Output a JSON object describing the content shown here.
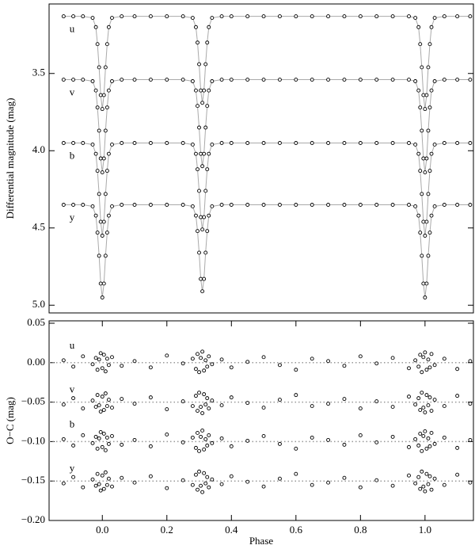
{
  "chart_data": [
    {
      "type": "line",
      "y_label": "Differential magnitude (mag)",
      "x": [
        -0.12,
        -0.09,
        -0.06,
        -0.03,
        -0.02,
        -0.015,
        -0.01,
        -0.005,
        0,
        0.005,
        0.01,
        0.015,
        0.02,
        0.03,
        0.06,
        0.1,
        0.15,
        0.2,
        0.25,
        0.28,
        0.29,
        0.295,
        0.3,
        0.305,
        0.31,
        0.315,
        0.32,
        0.325,
        0.33,
        0.34,
        0.37,
        0.4,
        0.45,
        0.5,
        0.55,
        0.6,
        0.65,
        0.7,
        0.75,
        0.8,
        0.85,
        0.9,
        0.95,
        0.97,
        0.98,
        0.985,
        0.99,
        0.995,
        1.0,
        1.005,
        1.01,
        1.015,
        1.02,
        1.03,
        1.06,
        1.1,
        1.14
      ],
      "xlim": [
        -0.165,
        1.15
      ],
      "ylim": [
        5.05,
        3.05
      ],
      "yticks": [
        3.5,
        {
          "value": 4,
          "label": "4.0"
        },
        4.5,
        {
          "value": 5,
          "label": "5.0"
        }
      ],
      "series": [
        {
          "name": "u",
          "color": "#000000",
          "values": [
            3.13,
            3.13,
            3.13,
            3.14,
            3.2,
            3.31,
            3.46,
            3.64,
            3.73,
            3.64,
            3.46,
            3.31,
            3.2,
            3.14,
            3.13,
            3.13,
            3.13,
            3.13,
            3.13,
            3.14,
            3.2,
            3.3,
            3.44,
            3.61,
            3.69,
            3.61,
            3.44,
            3.3,
            3.2,
            3.14,
            3.13,
            3.13,
            3.13,
            3.13,
            3.13,
            3.13,
            3.13,
            3.13,
            3.13,
            3.13,
            3.13,
            3.13,
            3.13,
            3.14,
            3.2,
            3.31,
            3.46,
            3.64,
            3.73,
            3.64,
            3.46,
            3.31,
            3.2,
            3.14,
            3.13,
            3.13,
            3.13
          ]
        },
        {
          "name": "v",
          "color": "#000000",
          "values": [
            3.54,
            3.54,
            3.54,
            3.55,
            3.61,
            3.72,
            3.87,
            4.05,
            4.14,
            4.05,
            3.87,
            3.72,
            3.61,
            3.55,
            3.54,
            3.54,
            3.54,
            3.54,
            3.54,
            3.55,
            3.61,
            3.71,
            3.85,
            4.02,
            4.1,
            4.02,
            3.85,
            3.71,
            3.61,
            3.55,
            3.54,
            3.54,
            3.54,
            3.54,
            3.54,
            3.54,
            3.54,
            3.54,
            3.54,
            3.54,
            3.54,
            3.54,
            3.54,
            3.55,
            3.61,
            3.72,
            3.87,
            4.05,
            4.14,
            4.05,
            3.87,
            3.72,
            3.61,
            3.55,
            3.54,
            3.54,
            3.54
          ]
        },
        {
          "name": "b",
          "color": "#000000",
          "values": [
            3.95,
            3.95,
            3.95,
            3.96,
            4.02,
            4.13,
            4.28,
            4.46,
            4.55,
            4.46,
            4.28,
            4.13,
            4.02,
            3.96,
            3.95,
            3.95,
            3.95,
            3.95,
            3.95,
            3.96,
            4.02,
            4.12,
            4.26,
            4.43,
            4.51,
            4.43,
            4.26,
            4.12,
            4.02,
            3.96,
            3.95,
            3.95,
            3.95,
            3.95,
            3.95,
            3.95,
            3.95,
            3.95,
            3.95,
            3.95,
            3.95,
            3.95,
            3.95,
            3.96,
            4.02,
            4.13,
            4.28,
            4.46,
            4.55,
            4.46,
            4.28,
            4.13,
            4.02,
            3.96,
            3.95,
            3.95,
            3.95
          ]
        },
        {
          "name": "y",
          "color": "#000000",
          "values": [
            4.35,
            4.35,
            4.35,
            4.36,
            4.42,
            4.53,
            4.68,
            4.86,
            4.95,
            4.86,
            4.68,
            4.53,
            4.42,
            4.36,
            4.35,
            4.35,
            4.35,
            4.35,
            4.35,
            4.36,
            4.42,
            4.52,
            4.66,
            4.83,
            4.91,
            4.83,
            4.66,
            4.52,
            4.42,
            4.36,
            4.35,
            4.35,
            4.35,
            4.35,
            4.35,
            4.35,
            4.35,
            4.35,
            4.35,
            4.35,
            4.35,
            4.35,
            4.35,
            4.36,
            4.42,
            4.53,
            4.68,
            4.86,
            4.95,
            4.86,
            4.68,
            4.53,
            4.42,
            4.36,
            4.35,
            4.35,
            4.35
          ]
        }
      ]
    },
    {
      "type": "scatter",
      "x_label": "Phase",
      "y_label": "O−C (mag)",
      "x": [
        -0.12,
        -0.09,
        -0.06,
        -0.03,
        -0.02,
        -0.015,
        -0.01,
        -0.005,
        0,
        0.005,
        0.01,
        0.015,
        0.02,
        0.03,
        0.06,
        0.1,
        0.15,
        0.2,
        0.25,
        0.28,
        0.29,
        0.295,
        0.3,
        0.305,
        0.31,
        0.315,
        0.32,
        0.325,
        0.33,
        0.34,
        0.37,
        0.4,
        0.45,
        0.5,
        0.55,
        0.6,
        0.65,
        0.7,
        0.75,
        0.8,
        0.85,
        0.9,
        0.95,
        0.97,
        0.98,
        0.985,
        0.99,
        0.995,
        1.0,
        1.005,
        1.01,
        1.015,
        1.02,
        1.03,
        1.06,
        1.1,
        1.14
      ],
      "xlim": [
        -0.165,
        1.15
      ],
      "ylim": [
        -0.2,
        0.053
      ],
      "xticks": [
        {
          "value": 0,
          "label": "0.0"
        },
        0.2,
        0.4,
        0.6,
        0.8,
        {
          "value": 1,
          "label": "1.0"
        }
      ],
      "yticks": [
        0.05,
        {
          "value": 0,
          "label": "0.00"
        },
        {
          "value": -0.05,
          "label": "−0.05"
        },
        {
          "value": -0.1,
          "label": "−0.10"
        },
        {
          "value": -0.15,
          "label": "−0.15"
        },
        {
          "value": -0.2,
          "label": "−0.20"
        }
      ],
      "reference_lines": [
        0,
        -0.05,
        -0.1,
        -0.15
      ],
      "series": [
        {
          "name": "u",
          "color": "#000000",
          "values": [
            0.003,
            -0.005,
            0.008,
            -0.002,
            0.006,
            -0.009,
            0.004,
            0.012,
            -0.007,
            0.01,
            -0.011,
            0.005,
            -0.003,
            0.007,
            -0.004,
            0.002,
            -0.006,
            0.009,
            -0.001,
            0.005,
            -0.008,
            0.011,
            -0.012,
            0.006,
            0.014,
            -0.01,
            0.003,
            -0.005,
            0.008,
            -0.002,
            0.004,
            -0.006,
            0.001,
            0.007,
            -0.003,
            -0.009,
            0.005,
            0.002,
            -0.004,
            0.008,
            -0.001,
            0.006,
            -0.007,
            0.003,
            -0.005,
            0.01,
            -0.012,
            0.007,
            0.013,
            -0.009,
            0.004,
            -0.006,
            0.011,
            -0.003,
            0.005,
            -0.008,
            0.002
          ]
        },
        {
          "name": "v",
          "color": "#000000",
          "values": [
            -0.053,
            -0.045,
            -0.058,
            -0.048,
            -0.056,
            -0.041,
            -0.054,
            -0.062,
            -0.043,
            -0.06,
            -0.039,
            -0.055,
            -0.047,
            -0.057,
            -0.046,
            -0.052,
            -0.044,
            -0.059,
            -0.049,
            -0.055,
            -0.042,
            -0.061,
            -0.038,
            -0.056,
            -0.064,
            -0.04,
            -0.053,
            -0.045,
            -0.058,
            -0.048,
            -0.054,
            -0.044,
            -0.051,
            -0.057,
            -0.047,
            -0.041,
            -0.055,
            -0.052,
            -0.046,
            -0.058,
            -0.049,
            -0.056,
            -0.043,
            -0.053,
            -0.045,
            -0.06,
            -0.038,
            -0.057,
            -0.063,
            -0.041,
            -0.054,
            -0.044,
            -0.061,
            -0.047,
            -0.055,
            -0.042,
            -0.052
          ]
        },
        {
          "name": "b",
          "color": "#000000",
          "values": [
            -0.097,
            -0.105,
            -0.092,
            -0.102,
            -0.094,
            -0.109,
            -0.096,
            -0.088,
            -0.107,
            -0.09,
            -0.111,
            -0.095,
            -0.103,
            -0.093,
            -0.104,
            -0.098,
            -0.106,
            -0.091,
            -0.101,
            -0.095,
            -0.108,
            -0.089,
            -0.112,
            -0.094,
            -0.086,
            -0.11,
            -0.097,
            -0.105,
            -0.092,
            -0.102,
            -0.096,
            -0.106,
            -0.099,
            -0.093,
            -0.103,
            -0.109,
            -0.095,
            -0.098,
            -0.104,
            -0.092,
            -0.101,
            -0.094,
            -0.107,
            -0.097,
            -0.105,
            -0.09,
            -0.112,
            -0.093,
            -0.087,
            -0.109,
            -0.096,
            -0.106,
            -0.089,
            -0.103,
            -0.095,
            -0.108,
            -0.098
          ]
        },
        {
          "name": "y",
          "color": "#000000",
          "values": [
            -0.153,
            -0.145,
            -0.158,
            -0.148,
            -0.156,
            -0.141,
            -0.154,
            -0.162,
            -0.143,
            -0.16,
            -0.139,
            -0.155,
            -0.147,
            -0.157,
            -0.146,
            -0.152,
            -0.144,
            -0.159,
            -0.149,
            -0.155,
            -0.142,
            -0.161,
            -0.138,
            -0.156,
            -0.164,
            -0.14,
            -0.153,
            -0.145,
            -0.158,
            -0.148,
            -0.154,
            -0.144,
            -0.151,
            -0.157,
            -0.147,
            -0.141,
            -0.155,
            -0.152,
            -0.146,
            -0.158,
            -0.149,
            -0.156,
            -0.143,
            -0.153,
            -0.145,
            -0.16,
            -0.138,
            -0.157,
            -0.163,
            -0.141,
            -0.154,
            -0.144,
            -0.161,
            -0.147,
            -0.155,
            -0.142,
            -0.152
          ]
        }
      ]
    }
  ]
}
